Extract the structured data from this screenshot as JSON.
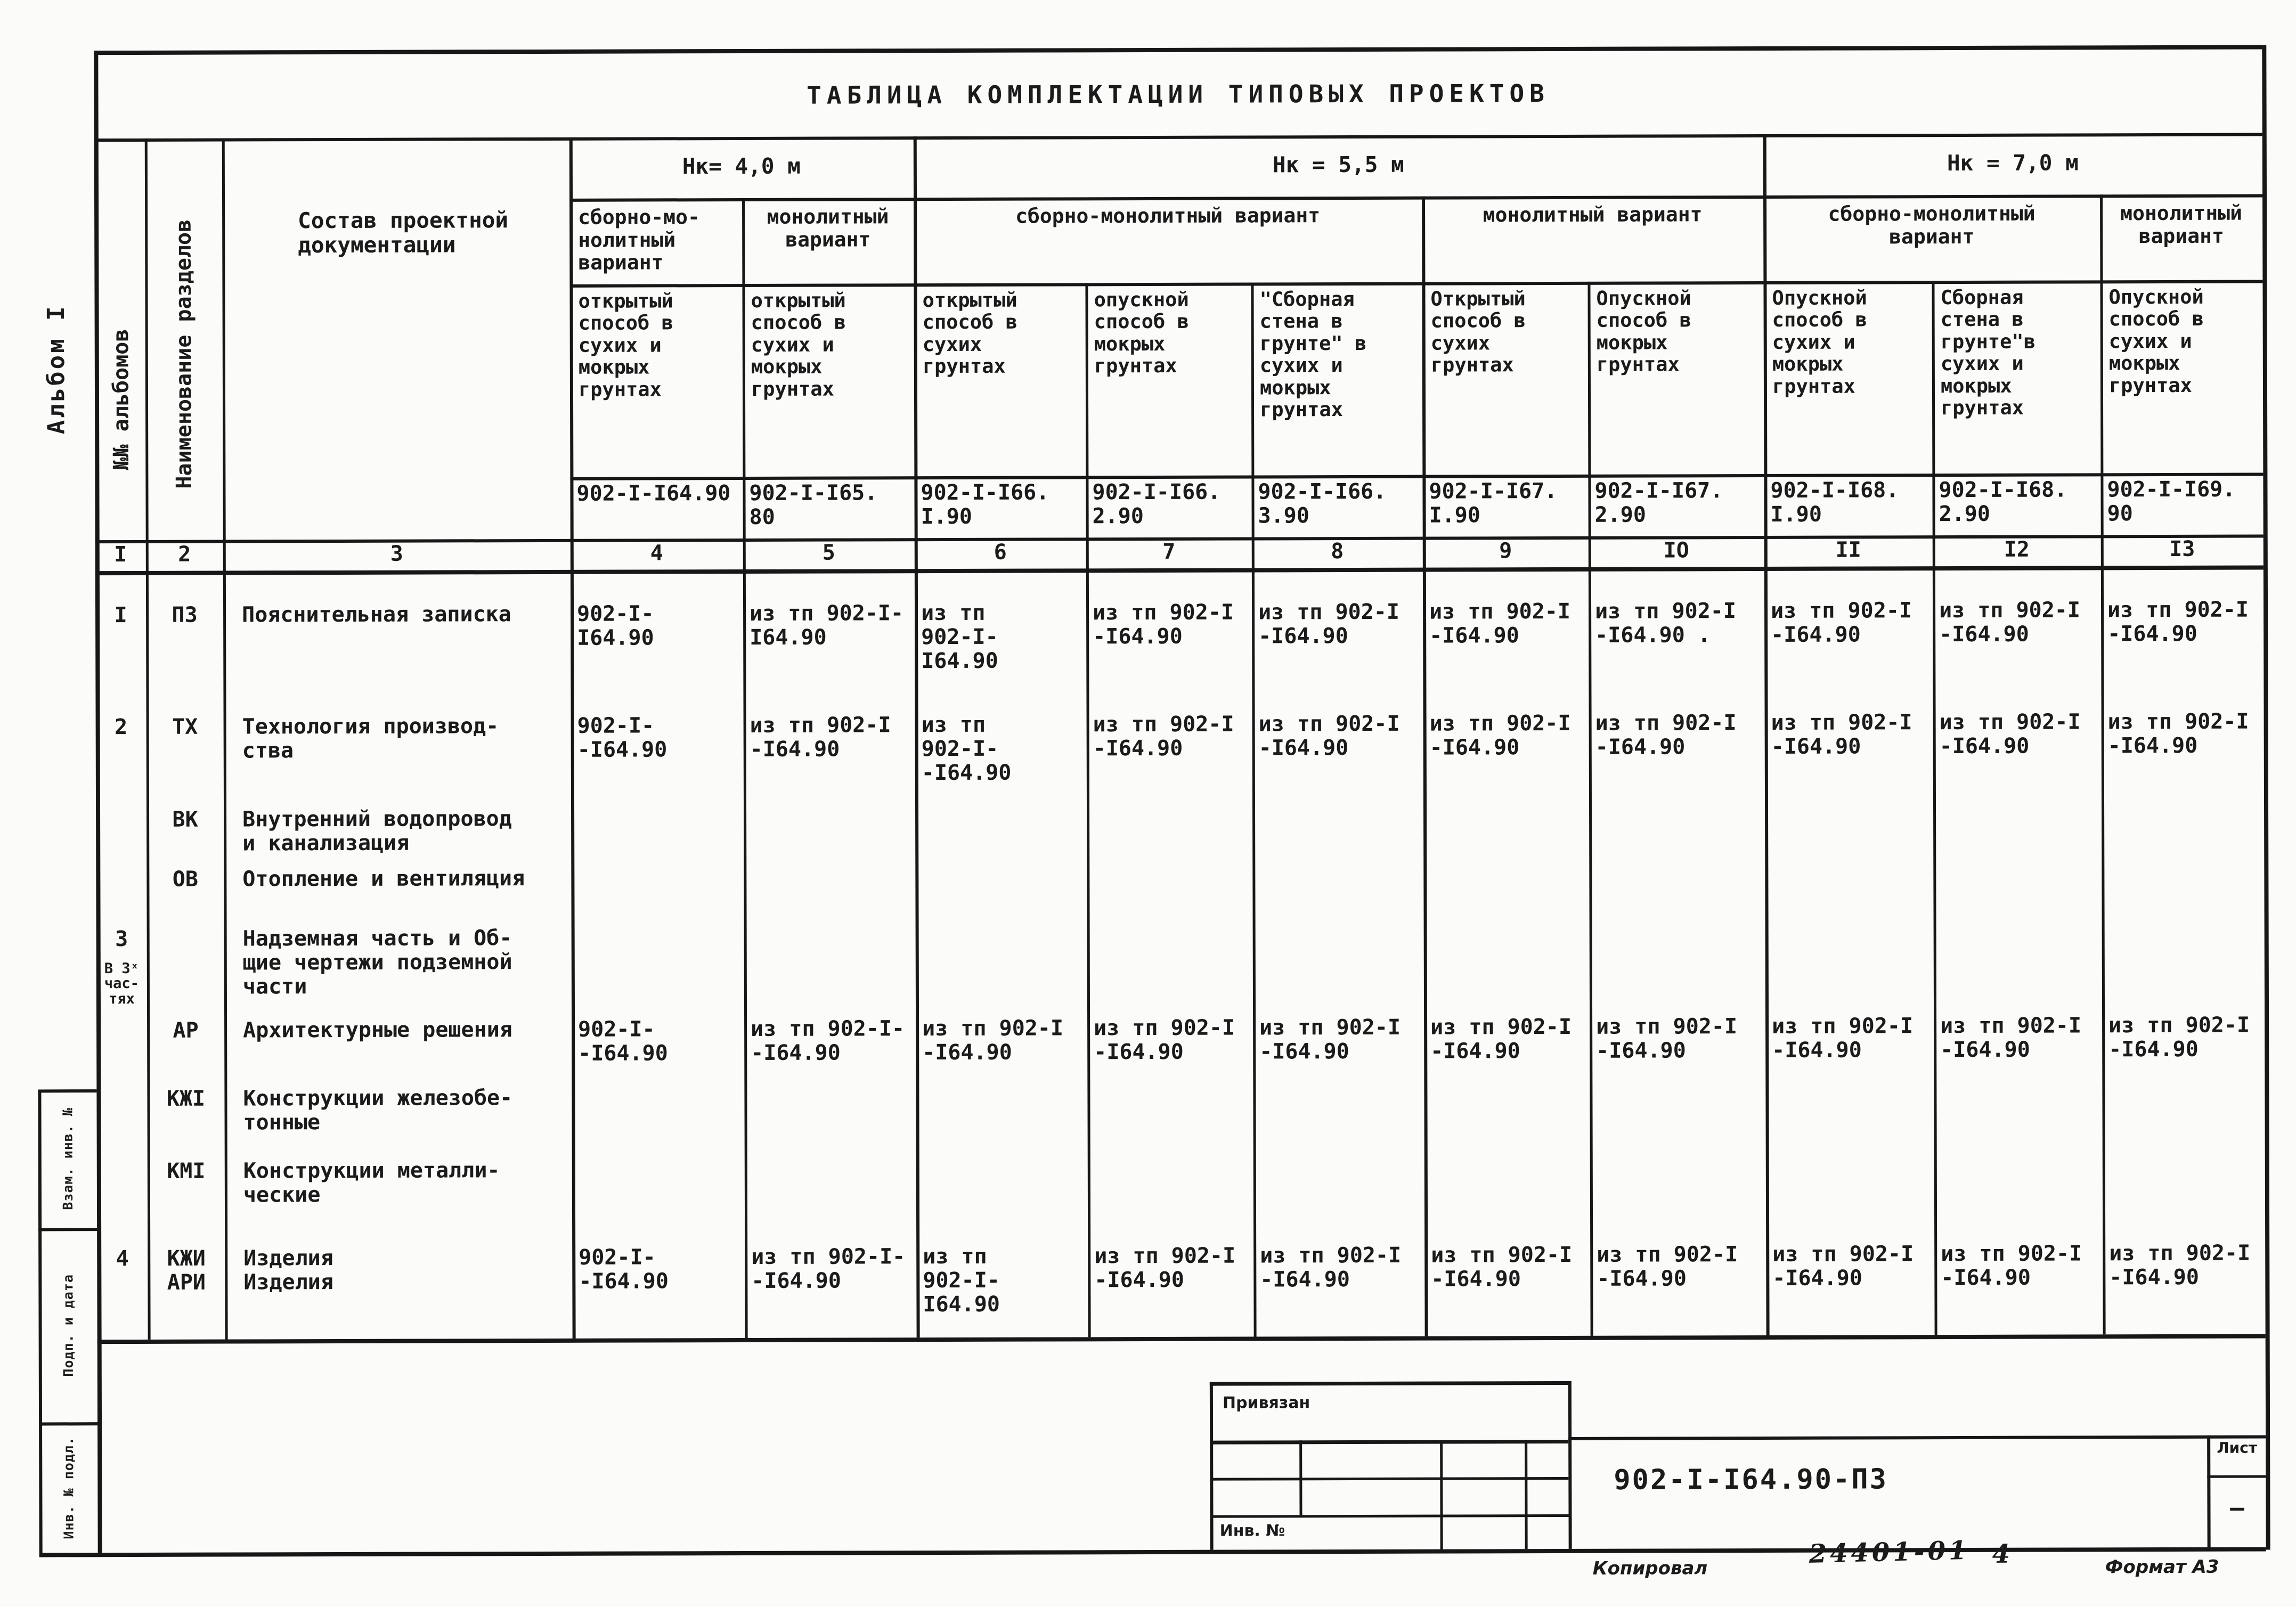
{
  "sheet": {
    "title": "ТАБЛИЦА КОМПЛЕКТАЦИИ ТИПОВЫХ ПРОЕКТОВ",
    "album_side_label": "Альбом I"
  },
  "header": {
    "col_albums": "№№ альбомов",
    "col_sections": "Наименование разделов",
    "col_composition": "Состав проектной\nдокументации",
    "height_groups": [
      "Нк= 4,0 м",
      "Нк = 5,5 м",
      "Нк = 7,0 м"
    ],
    "variant_groups": [
      "сборно-мо-\nнолитный\nвариант",
      "монолитный\nвариант",
      "сборно-монолитный вариант",
      "монолитный вариант",
      "сборно-монолитный\nвариант",
      "монолитный\nвариант"
    ],
    "method_cells": [
      "открытый\nспособ в\nсухих и\nмокрых\nгрунтах",
      "открытый\nспособ в\nсухих и\nмокрых\nгрунтах",
      "открытый\nспособ в\nсухих\nгрунтах",
      "опускной\nспособ в\nмокрых\nгрунтах",
      "\"Сборная\nстена в\nгрунте\" в\nсухих и\nмокрых\nгрунтах",
      "Открытый\nспособ в\nсухих\nгрунтах",
      "Опускной\nспособ в\nмокрых\nгрунтах",
      "Опускной\nспособ в\nсухих и\nмокрых\nгрунтах",
      "Сборная\nстена в\nгрунте\"в\nсухих и\nмокрых\nгрунтах",
      "Опускной\nспособ в\nсухих и\nмокрых\nгрунтах"
    ],
    "code_cells": [
      "902-I-I64.90",
      "902-I-I65.\n80",
      "902-I-I66.\nI.90",
      "902-I-I66.\n2.90",
      "902-I-I66.\n3.90",
      "902-I-I67.\nI.90",
      "902-I-I67.\n2.90",
      "902-I-I68.\nI.90",
      "902-I-I68.\n2.90",
      "902-I-I69.\n90"
    ],
    "column_numbers": [
      "I",
      "2",
      "3",
      "4",
      "5",
      "6",
      "7",
      "8",
      "9",
      "IO",
      "II",
      "I2",
      "I3"
    ]
  },
  "rows": [
    {
      "album": "I",
      "album_note": "",
      "section": "ПЗ",
      "name": "Пояснительная записка",
      "cells": [
        "902-I-\nI64.90",
        "из тп 902-I-\nI64.90",
        "из тп\n902-I-\nI64.90",
        "из тп 902-I\n-I64.90",
        "из тп 902-I\n-I64.90",
        "из тп 902-I\n-I64.90",
        "из тп 902-I\n-I64.90 .",
        "из тп 902-I\n-I64.90",
        "из тп 902-I\n-I64.90",
        "из тп 902-I\n-I64.90"
      ]
    },
    {
      "album": "2",
      "album_note": "",
      "section": "ТХ",
      "name": "Технология производ-\nства",
      "cells": [
        "902-I-\n-I64.90",
        "из тп 902-I\n-I64.90",
        "из тп\n902-I-\n-I64.90",
        "из тп 902-I\n-I64.90",
        "из тп 902-I\n-I64.90",
        "из тп 902-I\n-I64.90",
        "из тп 902-I\n-I64.90",
        "из тп 902-I\n-I64.90",
        "из тп 902-I\n-I64.90",
        "из тп 902-I\n-I64.90"
      ]
    },
    {
      "album": "",
      "album_note": "",
      "section": "ВК",
      "name": "Внутренний водопровод\nи канализация",
      "cells": [
        "",
        "",
        "",
        "",
        "",
        "",
        "",
        "",
        "",
        ""
      ]
    },
    {
      "album": "",
      "album_note": "",
      "section": "ОВ",
      "name": "Отопление и вентиляция",
      "cells": [
        "",
        "",
        "",
        "",
        "",
        "",
        "",
        "",
        "",
        ""
      ]
    },
    {
      "album": "3",
      "album_note": "В 3ˣ\nчас-\nтях",
      "section": "",
      "name": "Надземная часть и Об-\nщие чертежи подземной\nчасти",
      "cells": [
        "",
        "",
        "",
        "",
        "",
        "",
        "",
        "",
        "",
        ""
      ]
    },
    {
      "album": "",
      "album_note": "",
      "section": "АР",
      "name": "Архитектурные решения",
      "cells": [
        "902-I-\n-I64.90",
        "из тп 902-I-\n-I64.90",
        "из тп 902-I\n-I64.90",
        "из тп 902-I\n-I64.90",
        "из тп 902-I\n-I64.90",
        "из тп 902-I\n-I64.90",
        "из тп 902-I\n-I64.90",
        "из тп 902-I\n-I64.90",
        "из тп 902-I\n-I64.90",
        "из тп 902-I\n-I64.90"
      ]
    },
    {
      "album": "",
      "album_note": "",
      "section": "КЖI",
      "name": "Конструкции железобе-\nтонные",
      "cells": [
        "",
        "",
        "",
        "",
        "",
        "",
        "",
        "",
        "",
        ""
      ]
    },
    {
      "album": "",
      "album_note": "",
      "section": "КМI",
      "name": "Конструкции металли-\nческие",
      "cells": [
        "",
        "",
        "",
        "",
        "",
        "",
        "",
        "",
        "",
        ""
      ]
    },
    {
      "album": "4",
      "album_note": "",
      "section": "КЖИ\nАРИ",
      "name": "Изделия\nИзделия",
      "cells": [
        "902-I-\n-I64.90",
        "из тп 902-I-\n-I64.90",
        "из тп\n902-I-\nI64.90",
        "из тп 902-I\n-I64.90",
        "из тп 902-I\n-I64.90",
        "из тп 902-I\n-I64.90",
        "из тп 902-I\n-I64.90",
        "из тп 902-I\n-I64.90",
        "из тп 902-I\n-I64.90",
        "из тп 902-I\n-I64.90"
      ]
    }
  ],
  "stamps": {
    "left": [
      "Взам. инв. №",
      "Подп. и дата",
      "Инв. № подл."
    ]
  },
  "title_block": {
    "privyazan": "Привязан",
    "inv_no": "Инв. №",
    "doc_code": "902-I-I64.90-ПЗ",
    "list_label": "Лист",
    "list_value": "—",
    "kopiroval": "Копировал",
    "order_no": "24401-01",
    "sheet_no": "4",
    "format": "Формат А3"
  }
}
